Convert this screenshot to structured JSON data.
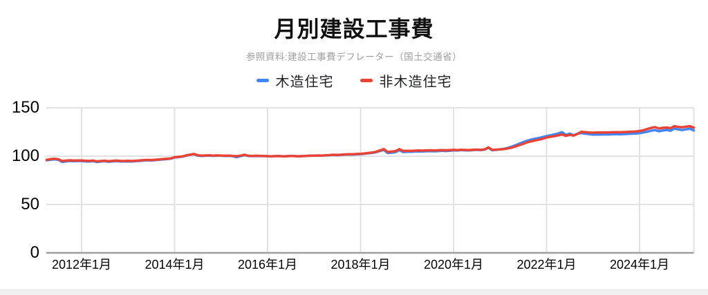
{
  "header": {
    "title": "月別建設工事費",
    "subtitle": "参照資料:建設工事費デフレーター（国土交通省）"
  },
  "legend": {
    "items": [
      {
        "label": "木造住宅",
        "color": "#4285f4"
      },
      {
        "label": "非木造住宅",
        "color": "#ea4335"
      }
    ]
  },
  "colors": {
    "background": "#ffffff",
    "grid": "#e2e2e2",
    "axis": "#9e9e9e",
    "title": "#111111",
    "subtitle": "#9e9e9e",
    "tick_label": "#000000",
    "series_blue": "#4285f4",
    "series_red": "#ea4335",
    "footer_bg": "#f1f1f1"
  },
  "chart_data": {
    "type": "line",
    "title": "月別建設工事費",
    "subtitle": "参照資料:建設工事費デフレーター（国土交通省）",
    "x_start": "2011年4月",
    "x_end": "2025年3月",
    "x_interval": "monthly",
    "xlabel": "",
    "ylabel": "",
    "xticks": [
      "2012年1月",
      "2014年1月",
      "2016年1月",
      "2018年1月",
      "2020年1月",
      "2022年1月",
      "2024年1月"
    ],
    "yticks": [
      0,
      50,
      100,
      150
    ],
    "ylim": [
      0,
      150
    ],
    "grid": true,
    "legend_position": "top",
    "series": [
      {
        "name": "木造住宅",
        "color": "#4285f4",
        "values": [
          95.7,
          96.3,
          96.7,
          96.2,
          93.9,
          94.6,
          95.0,
          94.7,
          94.9,
          94.9,
          94.6,
          94.4,
          94.8,
          93.9,
          94.4,
          94.7,
          94.2,
          94.5,
          94.8,
          94.5,
          94.4,
          94.6,
          94.5,
          94.8,
          95.1,
          95.4,
          95.7,
          95.6,
          95.9,
          96.2,
          96.6,
          96.9,
          97.3,
          98.6,
          99.0,
          99.4,
          100.5,
          101.3,
          102.0,
          100.6,
          100.2,
          100.4,
          100.6,
          100.3,
          100.5,
          100.4,
          100.2,
          100.3,
          100.0,
          98.9,
          100.0,
          101.1,
          100.2,
          100.0,
          100.2,
          100.1,
          100.0,
          99.9,
          99.8,
          100.1,
          100.2,
          99.8,
          100.0,
          100.3,
          100.1,
          99.9,
          100.1,
          100.3,
          100.4,
          100.4,
          100.6,
          100.5,
          100.8,
          101.0,
          101.2,
          101.0,
          101.3,
          101.5,
          101.7,
          101.6,
          101.9,
          102.1,
          102.5,
          102.9,
          103.3,
          104.1,
          105.3,
          106.5,
          103.2,
          103.6,
          104.1,
          106.2,
          104.2,
          104.5,
          104.4,
          104.7,
          104.9,
          104.8,
          105.1,
          105.2,
          105.0,
          105.2,
          105.5,
          105.3,
          105.6,
          106.0,
          105.8,
          106.2,
          106.0,
          105.9,
          106.3,
          106.5,
          106.3,
          106.7,
          108.6,
          106.1,
          106.5,
          107.1,
          107.6,
          108.5,
          109.8,
          111.3,
          113.0,
          114.5,
          115.9,
          117.1,
          118.0,
          118.8,
          119.7,
          120.7,
          121.5,
          122.4,
          123.4,
          124.8,
          121.9,
          123.3,
          121.6,
          123.2,
          123.8,
          123.2,
          122.7,
          122.2,
          122.4,
          122.3,
          122.5,
          122.4,
          122.6,
          122.7,
          122.6,
          122.8,
          123.0,
          123.2,
          123.4,
          123.8,
          124.4,
          125.2,
          126.3,
          126.9,
          125.7,
          126.5,
          127.1,
          126.3,
          128.4,
          127.6,
          126.9,
          127.8,
          128.3,
          126.6
        ]
      },
      {
        "name": "非木造住宅",
        "color": "#ea4335",
        "values": [
          96.3,
          96.9,
          97.3,
          96.8,
          94.9,
          95.4,
          95.7,
          95.4,
          95.6,
          95.6,
          95.3,
          95.1,
          95.4,
          94.6,
          95.0,
          95.3,
          94.8,
          95.1,
          95.4,
          95.1,
          95.0,
          95.2,
          95.0,
          95.3,
          95.6,
          95.9,
          96.1,
          96.0,
          96.3,
          96.6,
          97.0,
          97.3,
          97.6,
          98.9,
          99.3,
          99.7,
          100.8,
          101.6,
          102.3,
          100.9,
          100.5,
          100.7,
          100.9,
          100.6,
          100.8,
          100.6,
          100.4,
          100.5,
          100.2,
          100.0,
          100.5,
          101.5,
          100.4,
          100.2,
          100.4,
          100.3,
          100.2,
          100.0,
          99.8,
          100.0,
          100.1,
          99.7,
          99.9,
          100.2,
          100.0,
          99.8,
          100.0,
          100.2,
          100.4,
          100.5,
          100.7,
          100.6,
          100.9,
          101.1,
          101.4,
          101.2,
          101.5,
          101.8,
          102.0,
          101.9,
          102.2,
          102.4,
          102.8,
          103.3,
          103.7,
          104.5,
          105.9,
          107.3,
          104.3,
          104.7,
          105.2,
          107.2,
          105.4,
          105.6,
          105.4,
          105.7,
          105.9,
          105.7,
          106.0,
          106.1,
          105.9,
          106.1,
          106.3,
          106.1,
          106.3,
          106.5,
          106.3,
          106.6,
          106.4,
          106.2,
          106.6,
          106.8,
          106.5,
          106.9,
          109.0,
          106.4,
          106.7,
          107.0,
          107.3,
          107.9,
          108.8,
          110.0,
          111.4,
          112.8,
          114.2,
          115.3,
          116.2,
          117.0,
          117.9,
          119.3,
          120.0,
          120.6,
          121.5,
          122.4,
          120.9,
          122.0,
          121.2,
          123.0,
          125.2,
          124.8,
          124.4,
          124.3,
          124.5,
          124.4,
          124.6,
          124.5,
          124.7,
          124.8,
          124.7,
          124.9,
          125.1,
          125.3,
          125.5,
          126.0,
          126.8,
          128.1,
          129.2,
          130.0,
          128.6,
          129.3,
          129.6,
          128.9,
          131.0,
          130.2,
          129.8,
          130.6,
          130.9,
          129.4
        ]
      }
    ]
  }
}
